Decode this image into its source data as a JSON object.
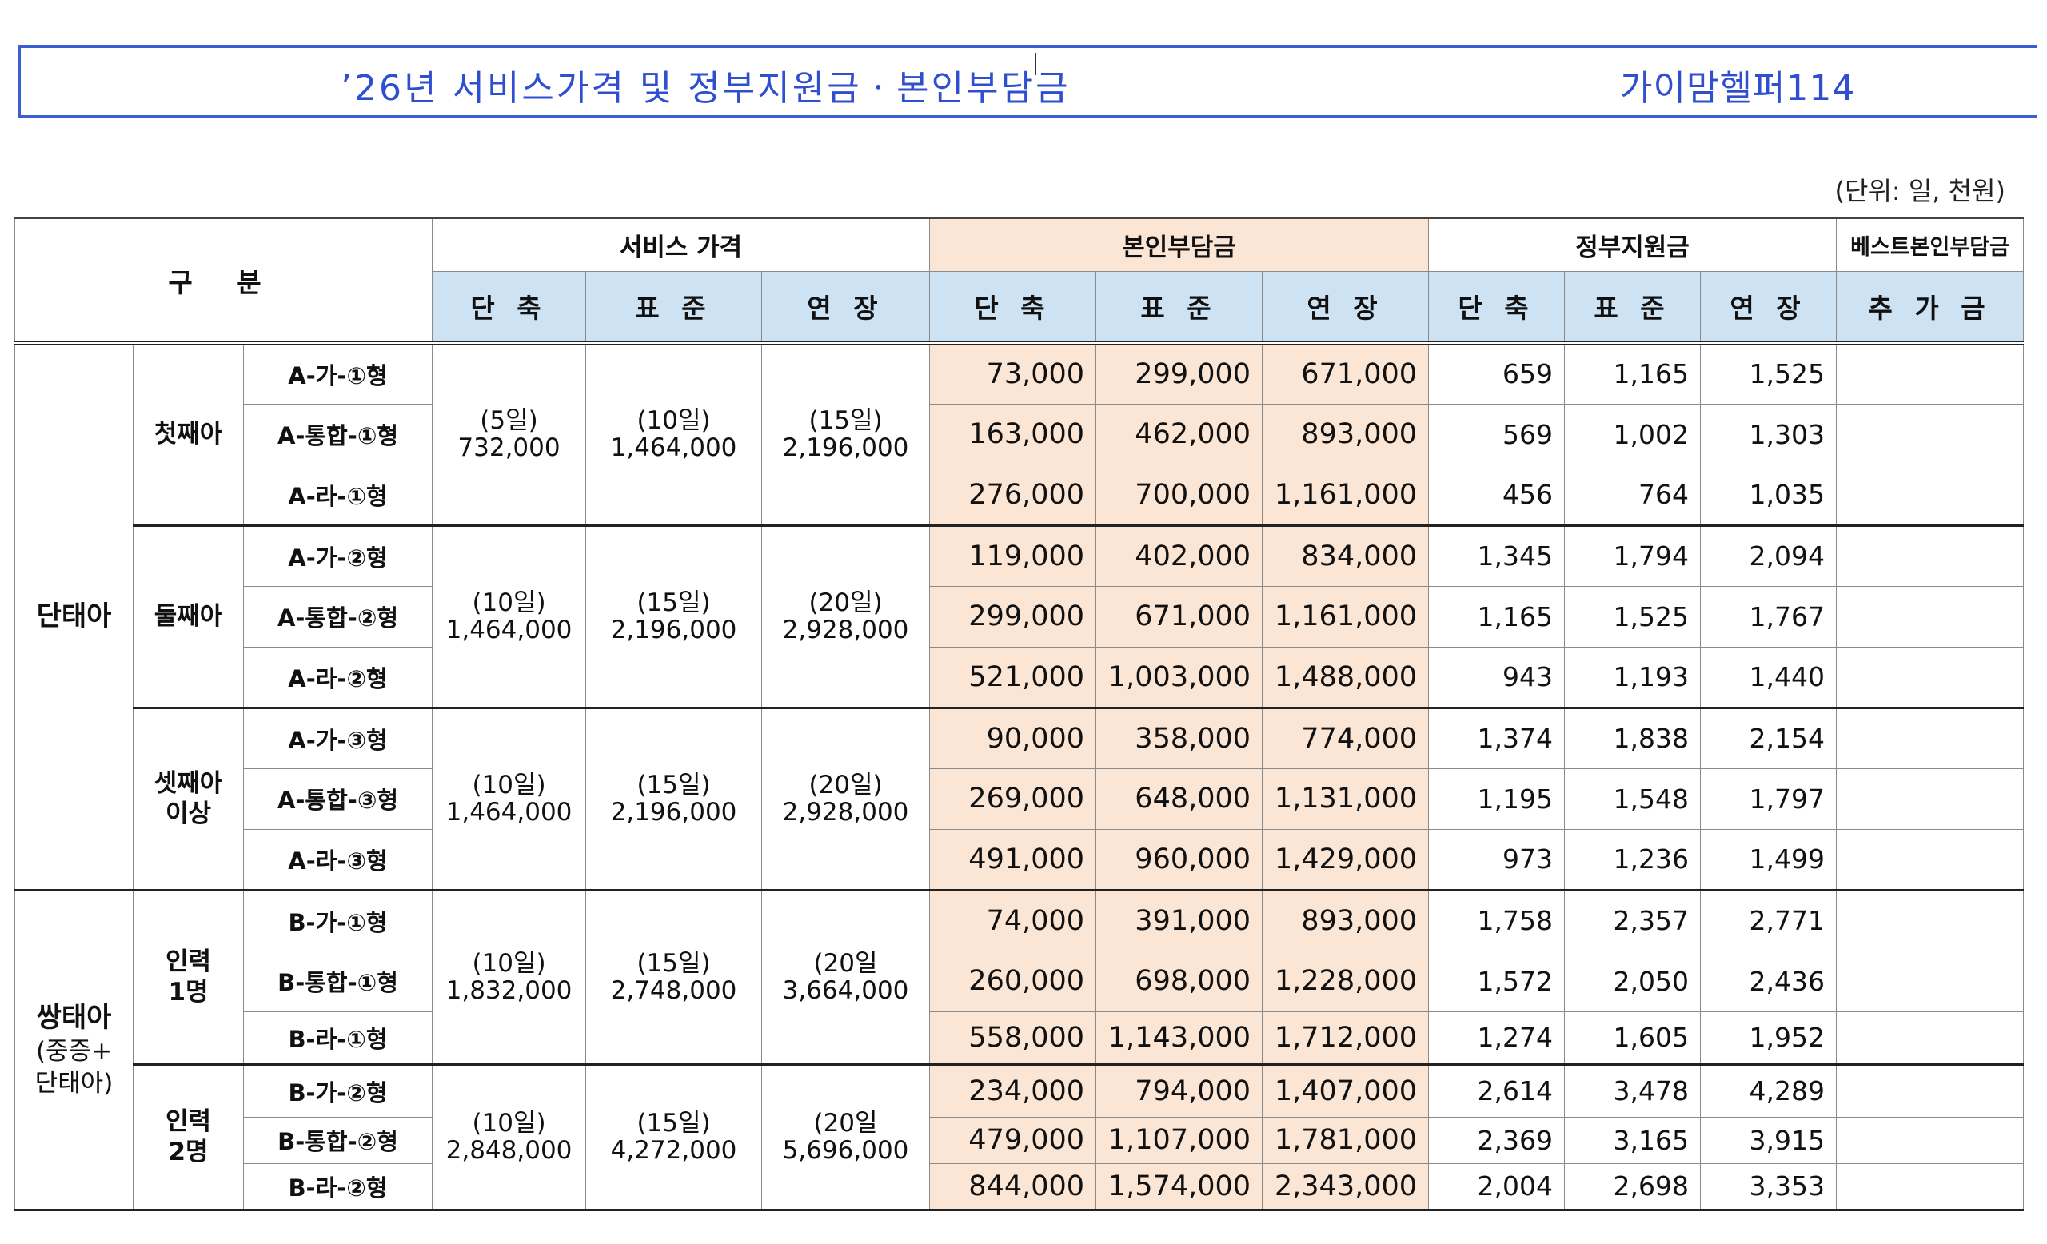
{
  "title": {
    "main": "’26년 서비스가격 및 정부지원금ㆍ본인부담금",
    "brand": "가이맘헬퍼114"
  },
  "unit_note": "(단위: 일, 천원)",
  "header": {
    "gubun": "구 분",
    "service_price": "서비스 가격",
    "self_pay": "본인부담금",
    "gov_support": "정부지원금",
    "best_self_pay": "베스트본인부담금",
    "short": "단 축",
    "standard": "표 준",
    "extended": "연 장",
    "additional": "추 가 금"
  },
  "groups": [
    {
      "name": "단태아",
      "sub": "",
      "children": [
        {
          "label": "첫째아",
          "price_short": [
            "(5일)",
            "732,000"
          ],
          "price_standard": [
            "(10일)",
            "1,464,000"
          ],
          "price_extended": [
            "(15일)",
            "2,196,000"
          ],
          "rows": [
            {
              "type": "A-가-①형",
              "self": [
                "73,000",
                "299,000",
                "671,000"
              ],
              "gov": [
                "659",
                "1,165",
                "1,525"
              ]
            },
            {
              "type": "A-통합-①형",
              "self": [
                "163,000",
                "462,000",
                "893,000"
              ],
              "gov": [
                "569",
                "1,002",
                "1,303"
              ]
            },
            {
              "type": "A-라-①형",
              "self": [
                "276,000",
                "700,000",
                "1,161,000"
              ],
              "gov": [
                "456",
                "764",
                "1,035"
              ]
            }
          ]
        },
        {
          "label": "둘째아",
          "price_short": [
            "(10일)",
            "1,464,000"
          ],
          "price_standard": [
            "(15일)",
            "2,196,000"
          ],
          "price_extended": [
            "(20일)",
            "2,928,000"
          ],
          "rows": [
            {
              "type": "A-가-②형",
              "self": [
                "119,000",
                "402,000",
                "834,000"
              ],
              "gov": [
                "1,345",
                "1,794",
                "2,094"
              ]
            },
            {
              "type": "A-통합-②형",
              "self": [
                "299,000",
                "671,000",
                "1,161,000"
              ],
              "gov": [
                "1,165",
                "1,525",
                "1,767"
              ]
            },
            {
              "type": "A-라-②형",
              "self": [
                "521,000",
                "1,003,000",
                "1,488,000"
              ],
              "gov": [
                "943",
                "1,193",
                "1,440"
              ]
            }
          ]
        },
        {
          "label": "셋째아\n이상",
          "price_short": [
            "(10일)",
            "1,464,000"
          ],
          "price_standard": [
            "(15일)",
            "2,196,000"
          ],
          "price_extended": [
            "(20일)",
            "2,928,000"
          ],
          "rows": [
            {
              "type": "A-가-③형",
              "self": [
                "90,000",
                "358,000",
                "774,000"
              ],
              "gov": [
                "1,374",
                "1,838",
                "2,154"
              ]
            },
            {
              "type": "A-통합-③형",
              "self": [
                "269,000",
                "648,000",
                "1,131,000"
              ],
              "gov": [
                "1,195",
                "1,548",
                "1,797"
              ]
            },
            {
              "type": "A-라-③형",
              "self": [
                "491,000",
                "960,000",
                "1,429,000"
              ],
              "gov": [
                "973",
                "1,236",
                "1,499"
              ]
            }
          ]
        }
      ]
    },
    {
      "name": "쌍태아",
      "sub": "(중증+\n단태아)",
      "children": [
        {
          "label": "인력\n1명",
          "price_short": [
            "(10일)",
            "1,832,000"
          ],
          "price_standard": [
            "(15일)",
            "2,748,000"
          ],
          "price_extended": [
            "(20일",
            "3,664,000"
          ],
          "rows": [
            {
              "type": "B-가-①형",
              "self": [
                "74,000",
                "391,000",
                "893,000"
              ],
              "gov": [
                "1,758",
                "2,357",
                "2,771"
              ]
            },
            {
              "type": "B-통합-①형",
              "self": [
                "260,000",
                "698,000",
                "1,228,000"
              ],
              "gov": [
                "1,572",
                "2,050",
                "2,436"
              ]
            },
            {
              "type": "B-라-①형",
              "self": [
                "558,000",
                "1,143,000",
                "1,712,000"
              ],
              "gov": [
                "1,274",
                "1,605",
                "1,952"
              ]
            }
          ]
        },
        {
          "label": "인력\n2명",
          "price_short": [
            "(10일)",
            "2,848,000"
          ],
          "price_standard": [
            "(15일)",
            "4,272,000"
          ],
          "price_extended": [
            "(20일",
            "5,696,000"
          ],
          "rows": [
            {
              "type": "B-가-②형",
              "self": [
                "234,000",
                "794,000",
                "1,407,000"
              ],
              "gov": [
                "2,614",
                "3,478",
                "4,289"
              ]
            },
            {
              "type": "B-통합-②형",
              "self": [
                "479,000",
                "1,107,000",
                "1,781,000"
              ],
              "gov": [
                "2,369",
                "3,165",
                "3,915"
              ]
            },
            {
              "type": "B-라-②형",
              "self": [
                "844,000",
                "1,574,000",
                "2,343,000"
              ],
              "gov": [
                "2,004",
                "2,698",
                "3,353"
              ]
            }
          ]
        }
      ]
    }
  ],
  "colors": {
    "title": "#2f4fcf",
    "self_pay_bg": "#fbe6d6",
    "subheader_bg": "#cde2f2"
  }
}
